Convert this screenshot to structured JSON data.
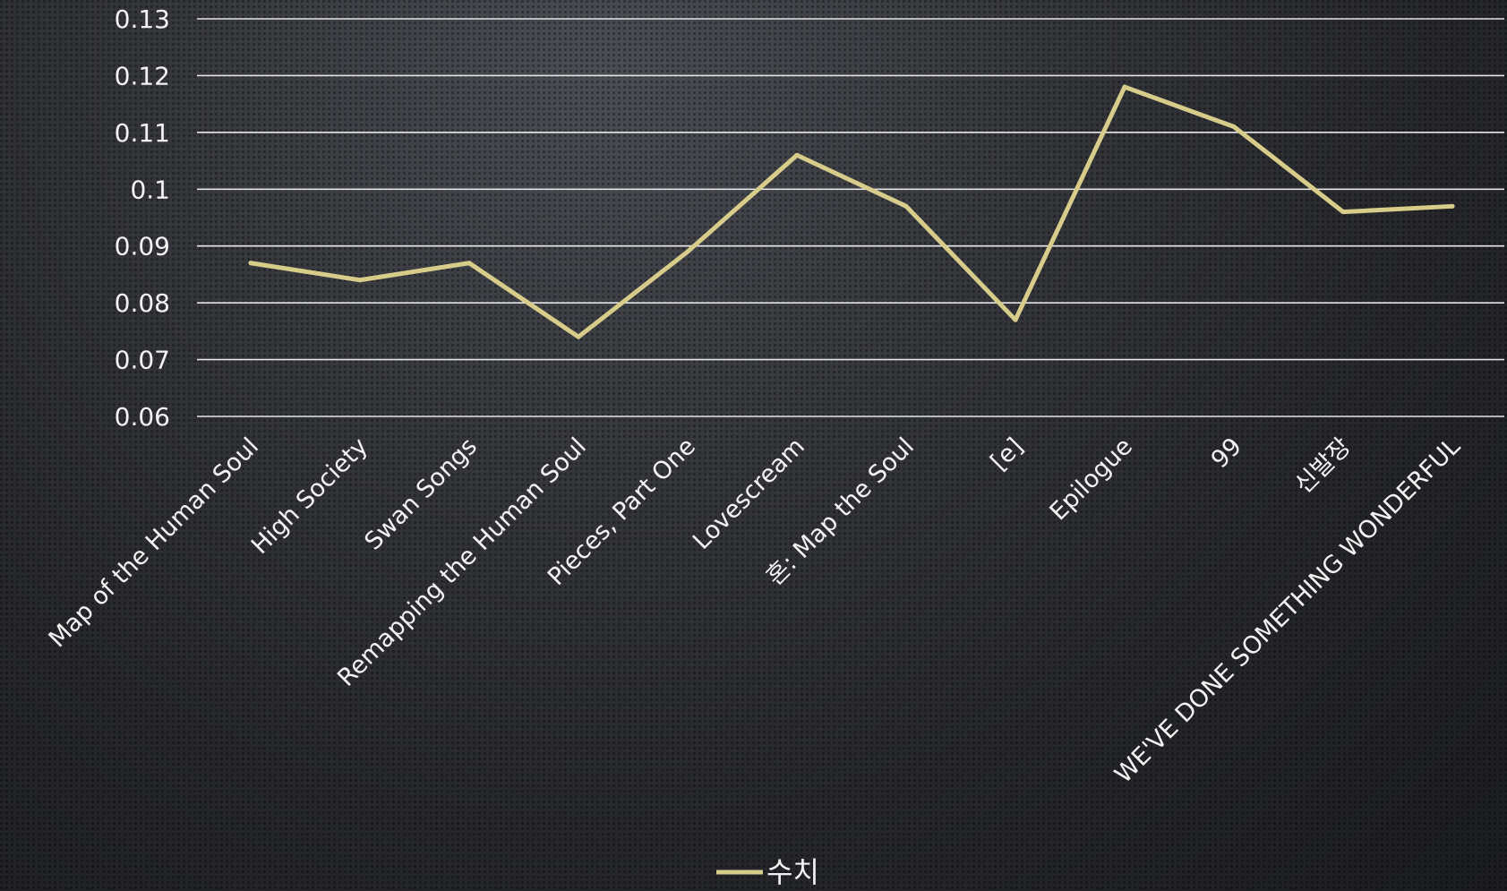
{
  "chart_data": {
    "type": "line",
    "categories": [
      "Map of the Human Soul",
      "High Society",
      "Swan Songs",
      "Remapping the Human Soul",
      "Pieces, Part One",
      "Lovescream",
      "혼: Map the Soul",
      "[e]",
      "Epilogue",
      "99",
      "신발장",
      "WE'VE DONE SOMETHING WONDERFUL"
    ],
    "series": [
      {
        "name": "수치",
        "values": [
          0.087,
          0.084,
          0.087,
          0.074,
          0.089,
          0.106,
          0.097,
          0.077,
          0.118,
          0.111,
          0.096,
          0.097
        ]
      }
    ],
    "yticks": [
      "0.06",
      "0.07",
      "0.08",
      "0.09",
      "0.1",
      "0.11",
      "0.12",
      "0.13"
    ],
    "ylim": [
      0.06,
      0.13
    ],
    "grid": true,
    "legend_position": "bottom-center",
    "colors": {
      "line": "#d8cc8a",
      "grid": "#e6e6e6",
      "text": "#f2f2f2"
    }
  }
}
